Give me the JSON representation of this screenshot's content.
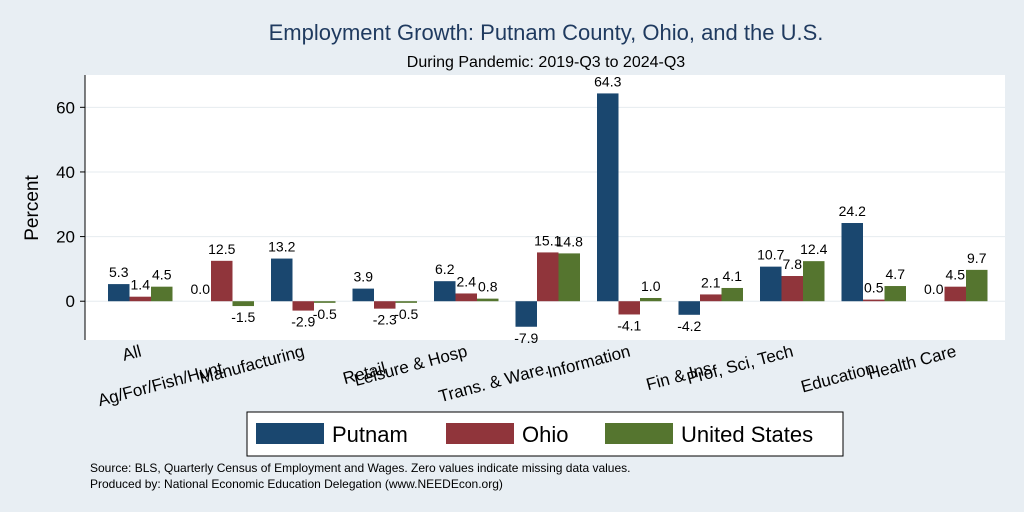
{
  "chart_data": {
    "type": "bar",
    "title": "Employment Growth: Putnam County, Ohio, and the U.S.",
    "subtitle": "During Pandemic: 2019-Q3 to 2024-Q3",
    "ylabel": "Percent",
    "xlabel": "",
    "ylim": [
      -12,
      70
    ],
    "yticks": [
      0,
      20,
      40,
      60
    ],
    "grid": true,
    "categories": [
      "All",
      "Ag/For/Fish/Hunt",
      "Manufacturing",
      "Retail",
      "Leisure & Hosp",
      "Trans. & Ware.",
      "Information",
      "Fin & Ins",
      "Prof, Sci, Tech",
      "Education",
      "Health Care"
    ],
    "series": [
      {
        "name": "Putnam",
        "color": "#1a476f",
        "values": [
          5.3,
          0.0,
          13.2,
          3.9,
          6.2,
          -7.9,
          64.3,
          -4.2,
          10.7,
          24.2,
          0.0
        ]
      },
      {
        "name": "Ohio",
        "color": "#90353b",
        "values": [
          1.4,
          12.5,
          -2.9,
          -2.3,
          2.4,
          15.1,
          -4.1,
          2.1,
          7.8,
          0.5,
          4.5
        ]
      },
      {
        "name": "United States",
        "color": "#55752f",
        "values": [
          4.5,
          -1.5,
          -0.5,
          -0.5,
          0.8,
          14.8,
          1.0,
          4.1,
          12.4,
          4.7,
          9.7
        ]
      }
    ],
    "value_labels": [
      [
        "5.3",
        "0.0",
        "13.2",
        "3.9",
        "6.2",
        "-7.9",
        "64.3",
        "-4.2",
        "10.7",
        "24.2",
        "0.0"
      ],
      [
        "1.4",
        "12.5",
        "-2.9",
        "-2.3",
        "2.4",
        "15.1",
        "-4.1",
        "2.1",
        "7.8",
        "0.5",
        "4.5"
      ],
      [
        "4.5",
        "-1.5",
        "-0.5",
        "-0.5",
        "0.8",
        "14.8",
        "1.0",
        "4.1",
        "12.4",
        "4.7",
        "9.7"
      ]
    ],
    "legend": {
      "position": "bottom",
      "entries": [
        "Putnam",
        "Ohio",
        "United States"
      ]
    },
    "notes": [
      "Source: BLS, Quarterly Census of Employment and Wages. Zero values indicate missing data values.",
      "Produced by: National Economic Education Delegation (www.NEEDEcon.org)"
    ]
  }
}
